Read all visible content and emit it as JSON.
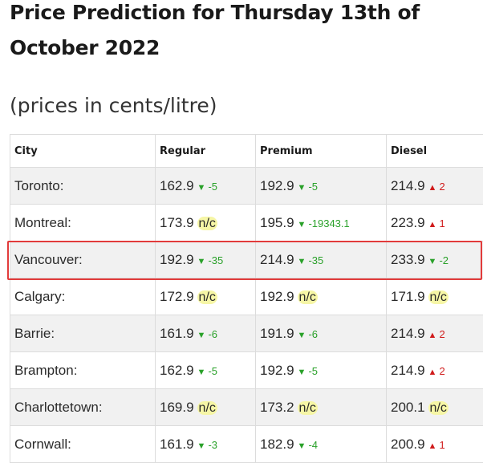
{
  "page": {
    "title": "Price Prediction for Thursday 13th of October 2022",
    "subtitle": "(prices in cents/litre)"
  },
  "table": {
    "headers": [
      "City",
      "Regular",
      "Premium",
      "Diesel"
    ],
    "rows": [
      {
        "city": "Toronto:",
        "regular": {
          "price": "162.9",
          "dir": "down",
          "change": "-5"
        },
        "premium": {
          "price": "192.9",
          "dir": "down",
          "change": "-5"
        },
        "diesel": {
          "price": "214.9",
          "dir": "up",
          "change": "2"
        }
      },
      {
        "city": "Montreal:",
        "regular": {
          "price": "173.9",
          "dir": "nc",
          "change": "n/c"
        },
        "premium": {
          "price": "195.9",
          "dir": "down",
          "change": "-19343.1"
        },
        "diesel": {
          "price": "223.9",
          "dir": "up",
          "change": "1"
        }
      },
      {
        "city": "Vancouver:",
        "regular": {
          "price": "192.9",
          "dir": "down",
          "change": "-35"
        },
        "premium": {
          "price": "214.9",
          "dir": "down",
          "change": "-35"
        },
        "diesel": {
          "price": "233.9",
          "dir": "down",
          "change": "-2"
        }
      },
      {
        "city": "Calgary:",
        "regular": {
          "price": "172.9",
          "dir": "nc",
          "change": "n/c"
        },
        "premium": {
          "price": "192.9",
          "dir": "nc",
          "change": "n/c"
        },
        "diesel": {
          "price": "171.9",
          "dir": "nc",
          "change": "n/c"
        }
      },
      {
        "city": "Barrie:",
        "regular": {
          "price": "161.9",
          "dir": "down",
          "change": "-6"
        },
        "premium": {
          "price": "191.9",
          "dir": "down",
          "change": "-6"
        },
        "diesel": {
          "price": "214.9",
          "dir": "up",
          "change": "2"
        }
      },
      {
        "city": "Brampton:",
        "regular": {
          "price": "162.9",
          "dir": "down",
          "change": "-5"
        },
        "premium": {
          "price": "192.9",
          "dir": "down",
          "change": "-5"
        },
        "diesel": {
          "price": "214.9",
          "dir": "up",
          "change": "2"
        }
      },
      {
        "city": "Charlottetown:",
        "regular": {
          "price": "169.9",
          "dir": "nc",
          "change": "n/c"
        },
        "premium": {
          "price": "173.2",
          "dir": "nc",
          "change": "n/c"
        },
        "diesel": {
          "price": "200.1",
          "dir": "nc",
          "change": "n/c"
        }
      },
      {
        "city": "Cornwall:",
        "regular": {
          "price": "161.9",
          "dir": "down",
          "change": "-3"
        },
        "premium": {
          "price": "182.9",
          "dir": "down",
          "change": "-4"
        },
        "diesel": {
          "price": "200.9",
          "dir": "up",
          "change": "1"
        }
      }
    ],
    "highlighted_row": "Vancouver:"
  },
  "icons": {
    "down": "triangle-down-icon",
    "up": "triangle-up-icon"
  },
  "colors": {
    "down": "#2aa12a",
    "up": "#d01c1c",
    "no_change_bg": "#f6f6a6",
    "highlight_border": "#e23b3b",
    "shaded_row": "#f1f1f1"
  }
}
